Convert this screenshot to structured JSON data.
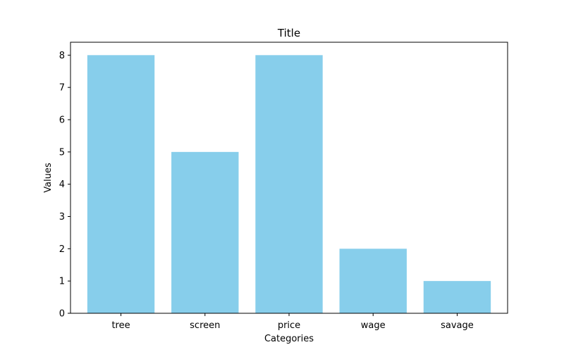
{
  "chart_data": {
    "type": "bar",
    "title": "Title",
    "xlabel": "Categories",
    "ylabel": "Values",
    "categories": [
      "tree",
      "screen",
      "price",
      "wage",
      "savage"
    ],
    "values": [
      8,
      5,
      8,
      2,
      1
    ],
    "ylim": [
      0,
      8.4
    ],
    "yticks": [
      "0",
      "1",
      "2",
      "3",
      "4",
      "5",
      "6",
      "7",
      "8"
    ],
    "grid": false,
    "legend": "none",
    "bar_color": "#87ceeb"
  }
}
